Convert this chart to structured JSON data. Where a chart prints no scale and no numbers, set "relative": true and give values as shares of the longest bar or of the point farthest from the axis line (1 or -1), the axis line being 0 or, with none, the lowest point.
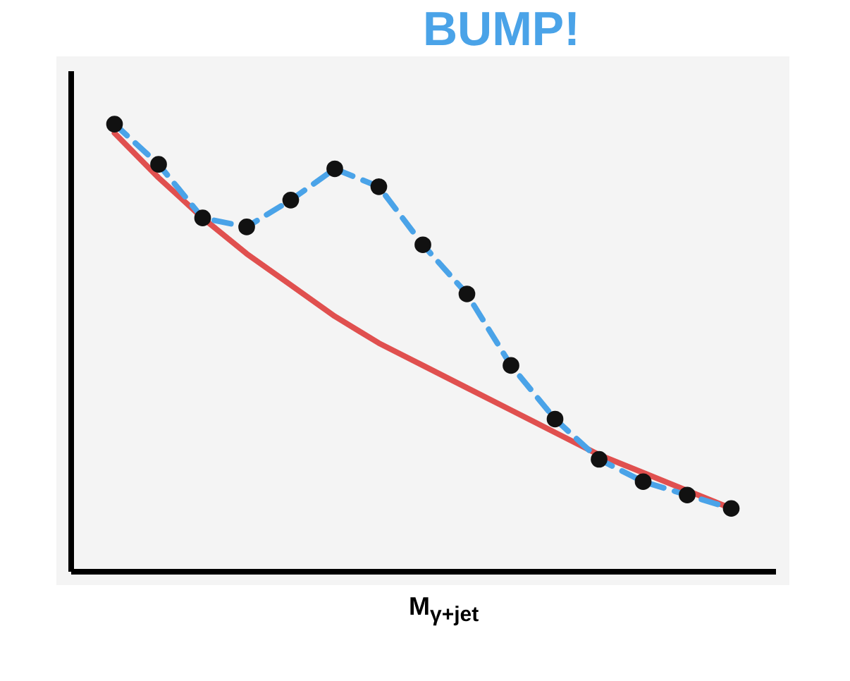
{
  "chart_data": {
    "type": "line",
    "title": "BUMP!",
    "xlabel": "M$_{γ+jet}$",
    "relative": true,
    "tick_labels": false,
    "grid": false,
    "categories": [
      null,
      null,
      null,
      null,
      null,
      null,
      null,
      null,
      null,
      null,
      null,
      null,
      null,
      null,
      null
    ],
    "series": [
      {
        "color": "#e0504f",
        "line_style": "solid",
        "marker": "none",
        "values": [
          0.98,
          0.88,
          0.79,
          0.71,
          0.64,
          0.57,
          0.51,
          0.46,
          0.41,
          0.36,
          0.31,
          0.26,
          0.22,
          0.18,
          0.14
        ]
      },
      {
        "color": "#4aa3e8",
        "line_style": "dashed",
        "marker": "circle",
        "values": [
          1,
          0.91,
          0.79,
          0.77,
          0.83,
          0.9,
          0.86,
          0.73,
          0.62,
          0.46,
          0.34,
          0.25,
          0.2,
          0.17,
          0.14
        ]
      }
    ]
  }
}
